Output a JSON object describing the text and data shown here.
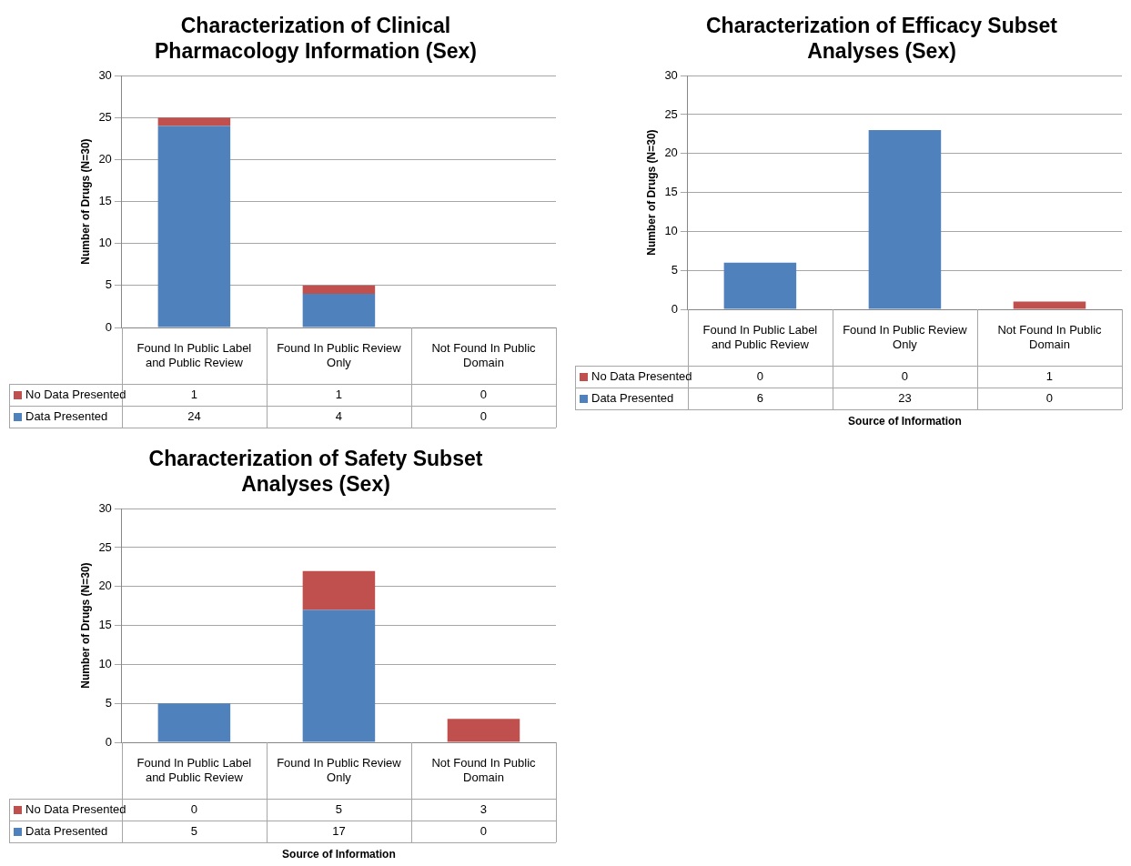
{
  "chart_data": [
    {
      "type": "bar",
      "title": "Characterization of Clinical Pharmacology Information (Sex)",
      "ylabel": "Number of Drugs (N=30)",
      "categories": [
        "Found In Public Label and Public Review",
        "Found In Public Review Only",
        "Not Found In Public Domain"
      ],
      "stacked": true,
      "ylim": [
        0,
        30
      ],
      "yticks": [
        0,
        5,
        10,
        15,
        20,
        25,
        30
      ],
      "grid": "y",
      "legend": "bottom left",
      "data_labels": true,
      "series": [
        {
          "name": "Data Presented",
          "color": "#4f81bd",
          "values": [
            24,
            4,
            0
          ]
        },
        {
          "name": "No Data Presented",
          "color": "#c0504d",
          "values": [
            1,
            1,
            0
          ]
        }
      ]
    },
    {
      "type": "bar",
      "title": "Characterization of Efficacy Subset Analyses (Sex)",
      "xlabel": "Source of Information",
      "ylabel": "Number of Drugs (N=30)",
      "categories": [
        "Found In Public Label and Public Review",
        "Found In Public Review Only",
        "Not Found In Public Domain"
      ],
      "stacked": true,
      "ylim": [
        0,
        30
      ],
      "yticks": [
        0,
        5,
        10,
        15,
        20,
        25,
        30
      ],
      "grid": "y",
      "legend": "bottom left",
      "data_labels": true,
      "series": [
        {
          "name": "Data Presented",
          "color": "#4f81bd",
          "values": [
            6,
            23,
            0
          ]
        },
        {
          "name": "No Data Presented",
          "color": "#c0504d",
          "values": [
            0,
            0,
            1
          ]
        }
      ]
    },
    {
      "type": "bar",
      "title": "Characterization of Safety Subset Analyses (Sex)",
      "xlabel": "Source of Information",
      "ylabel": "Number of Drugs (N=30)",
      "categories": [
        "Found In Public Label and Public Review",
        "Found In Public Review Only",
        "Not Found In Public Domain"
      ],
      "stacked": true,
      "ylim": [
        0,
        30
      ],
      "yticks": [
        0,
        5,
        10,
        15,
        20,
        25,
        30
      ],
      "grid": "y",
      "legend": "bottom left",
      "data_labels": true,
      "series": [
        {
          "name": "Data Presented",
          "color": "#4f81bd",
          "values": [
            5,
            17,
            0
          ]
        },
        {
          "name": "No Data Presented",
          "color": "#c0504d",
          "values": [
            0,
            5,
            3
          ]
        }
      ]
    }
  ]
}
